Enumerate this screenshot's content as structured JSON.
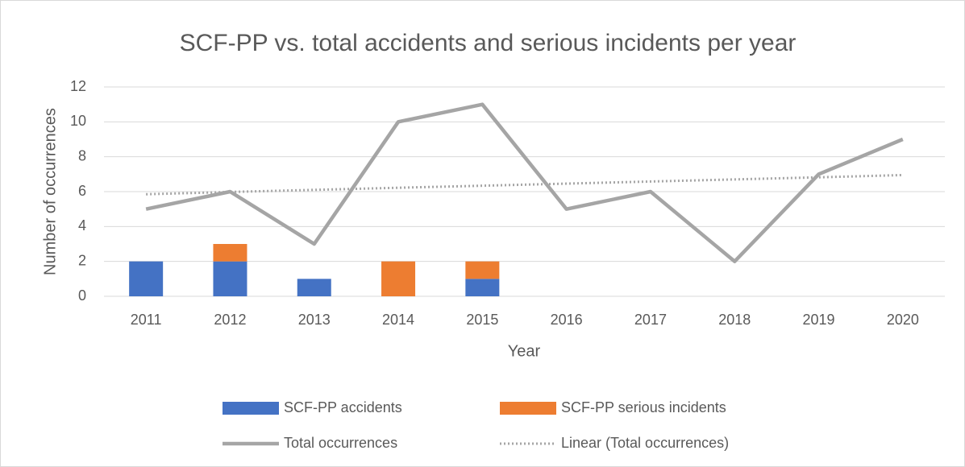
{
  "chart_data": {
    "type": "bar",
    "stacked": true,
    "title": "SCF-PP vs. total accidents and serious incidents per year",
    "x_label": "Year",
    "y_label": "Number of occurrences",
    "categories": [
      "2011",
      "2012",
      "2013",
      "2014",
      "2015",
      "2016",
      "2017",
      "2018",
      "2019",
      "2020"
    ],
    "series": [
      {
        "name": "SCF-PP accidents",
        "type": "bar",
        "color": "#4472c4",
        "values": [
          2,
          2,
          1,
          0,
          1,
          0,
          0,
          0,
          0,
          0
        ]
      },
      {
        "name": "SCF-PP serious incidents",
        "type": "bar",
        "color": "#ed7d31",
        "values": [
          0,
          1,
          0,
          2,
          1,
          0,
          0,
          0,
          0,
          0
        ]
      },
      {
        "name": "Total occurrences",
        "type": "line",
        "color": "#a5a5a5",
        "values": [
          5,
          6,
          3,
          10,
          11,
          5,
          6,
          2,
          7,
          9
        ]
      },
      {
        "name": "Linear (Total occurrences)",
        "type": "line",
        "style": "dotted",
        "color": "#a5a5a5",
        "values": [
          5.85,
          5.98,
          6.1,
          6.22,
          6.34,
          6.46,
          6.58,
          6.7,
          6.82,
          6.95
        ]
      }
    ],
    "ylim": [
      0,
      12
    ],
    "yticks": [
      0,
      2,
      4,
      6,
      8,
      10,
      12
    ],
    "grid": true,
    "legend": "bottom"
  }
}
